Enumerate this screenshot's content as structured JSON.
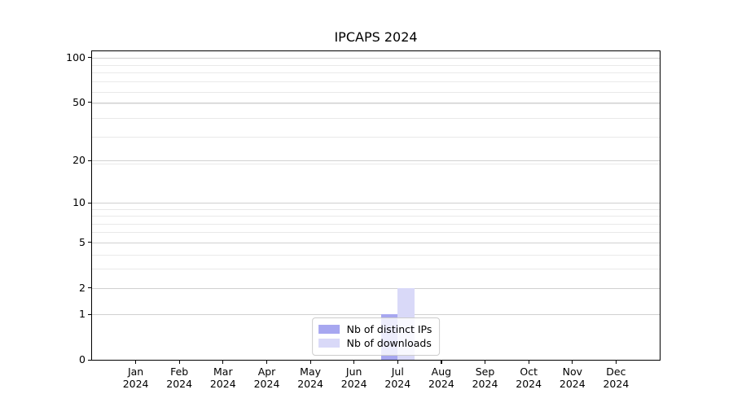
{
  "chart_data": {
    "type": "bar",
    "title": "IPCAPS 2024",
    "x": {
      "months": [
        "Jan",
        "Feb",
        "Mar",
        "Apr",
        "May",
        "Jun",
        "Jul",
        "Aug",
        "Sep",
        "Oct",
        "Nov",
        "Dec"
      ],
      "year": "2024"
    },
    "series": [
      {
        "name": "Nb of distinct IPs",
        "color": "#a7a7f0",
        "values": [
          0,
          0,
          0,
          0,
          0,
          0,
          1,
          0,
          0,
          0,
          0,
          0
        ]
      },
      {
        "name": "Nb of downloads",
        "color": "#d9d9f8",
        "values": [
          0,
          0,
          0,
          0,
          0,
          0,
          2,
          0,
          0,
          0,
          0,
          0
        ]
      }
    ],
    "y_axis": {
      "scale": "log1p",
      "major_ticks": [
        0,
        1,
        2,
        5,
        10,
        20,
        50,
        100
      ],
      "minor_gridlines": [
        3,
        4,
        6,
        7,
        8,
        9,
        19,
        29,
        39,
        49,
        59,
        69,
        79,
        89
      ],
      "ylim": [
        0,
        110
      ]
    },
    "legend": {
      "position": "lower center"
    },
    "grid": true
  },
  "colors": {
    "major_grid": "#d0d0d0",
    "minor_grid": "#e9e9e9",
    "spine": "#000000"
  }
}
